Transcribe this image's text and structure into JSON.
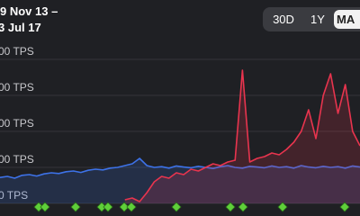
{
  "date_range": [
    "9 Nov 13 –",
    "3 Jul 17"
  ],
  "buttons": [
    "30D",
    "1Y",
    "MA"
  ],
  "chart_data": {
    "type": "line",
    "ylim": [
      -35,
      565
    ],
    "yticks": [
      {
        "value": 0,
        "label": "0 TPS"
      },
      {
        "value": 100,
        "label": "00 TPS"
      },
      {
        "value": 200,
        "label": "00 TPS"
      },
      {
        "value": 300,
        "label": "00 TPS"
      },
      {
        "value": 400,
        "label": "00 TPS"
      }
    ],
    "grid": true,
    "series": [
      {
        "color": "#3d72e8",
        "values": [
          72,
          75,
          70,
          78,
          80,
          76,
          82,
          85,
          83,
          88,
          90,
          86,
          92,
          95,
          93,
          98,
          100,
          105,
          110,
          125,
          105,
          100,
          102,
          98,
          104,
          101,
          99,
          103,
          100,
          97,
          102,
          105,
          100,
          98,
          103,
          101,
          99,
          104,
          100,
          102,
          98,
          105,
          101,
          99,
          103,
          100,
          102,
          98,
          104,
          101
        ]
      },
      {
        "color": "#e8344e",
        "values": [
          null,
          null,
          null,
          null,
          null,
          null,
          null,
          null,
          null,
          null,
          null,
          null,
          null,
          null,
          null,
          null,
          null,
          10,
          15,
          5,
          30,
          60,
          75,
          70,
          85,
          80,
          95,
          90,
          100,
          110,
          105,
          115,
          120,
          370,
          115,
          125,
          130,
          140,
          135,
          150,
          170,
          200,
          260,
          180,
          300,
          360,
          250,
          330,
          200,
          160
        ]
      }
    ]
  }
}
